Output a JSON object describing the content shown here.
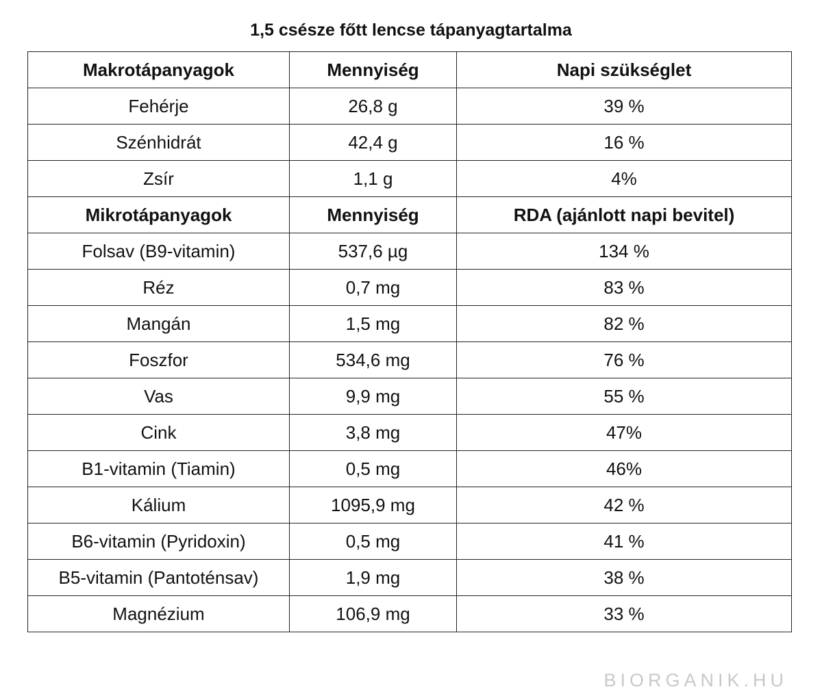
{
  "title": "1,5 csésze főtt lencse tápanyagtartalma",
  "macro_header": [
    "Makrotápanyagok",
    "Mennyiség",
    "Napi szükséglet"
  ],
  "macro_rows": [
    [
      "Fehérje",
      "26,8 g",
      "39 %"
    ],
    [
      "Szénhidrát",
      "42,4 g",
      "16 %"
    ],
    [
      "Zsír",
      "1,1 g",
      "4%"
    ]
  ],
  "micro_header": [
    "Mikrotápanyagok",
    "Mennyiség",
    "RDA (ajánlott napi bevitel)"
  ],
  "micro_rows": [
    [
      "Folsav (B9-vitamin)",
      "537,6 µg",
      "134 %"
    ],
    [
      "Réz",
      "0,7 mg",
      "83 %"
    ],
    [
      "Mangán",
      "1,5 mg",
      "82 %"
    ],
    [
      "Foszfor",
      "534,6 mg",
      "76 %"
    ],
    [
      "Vas",
      "9,9 mg",
      "55 %"
    ],
    [
      "Cink",
      "3,8 mg",
      "47%"
    ],
    [
      "B1-vitamin (Tiamin)",
      "0,5 mg",
      "46%"
    ],
    [
      "Kálium",
      "1095,9 mg",
      "42 %"
    ],
    [
      "B6-vitamin (Pyridoxin)",
      "0,5 mg",
      "41 %"
    ],
    [
      "B5-vitamin (Pantoténsav)",
      "1,9 mg",
      "38 %"
    ],
    [
      "Magnézium",
      "106,9 mg",
      "33 %"
    ]
  ],
  "watermark": "BIORGANIK.HU"
}
